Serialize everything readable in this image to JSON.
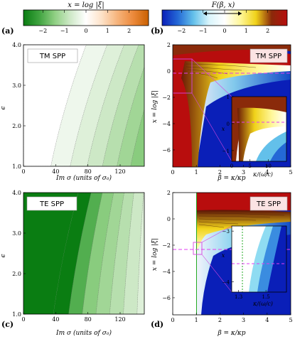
{
  "colorbars": {
    "left": {
      "title": "x = log |ξ|",
      "ticks": [
        "−2",
        "−1",
        "0",
        "1",
        "2"
      ],
      "range": [
        -2.9,
        2.9
      ],
      "colors": [
        "#0a7d12",
        "#3fa33f",
        "#8fcf83",
        "#cfe9c8",
        "#ffffff",
        "#fde2c8",
        "#f6b47c",
        "#ec8a3c",
        "#c96000"
      ]
    },
    "right": {
      "title": "F(β, x)",
      "ticks": [
        "−2",
        "−1",
        "0",
        "1",
        "2"
      ],
      "range": [
        -2.9,
        2.9
      ],
      "colors": [
        "#0a1fb8",
        "#2468d6",
        "#63c0ea",
        "#d9f5fb",
        "#ffffff",
        "#fff79a",
        "#f0d21a",
        "#8a2a0a",
        "#b80d0d"
      ]
    }
  },
  "chart_data": [
    {
      "panel": "(a)",
      "type": "heatmap",
      "label": "TM SPP",
      "xlabel": "Im σ  (units of σ₀)",
      "ylabel": "ϵ",
      "xticks": [
        "0",
        "40",
        "80",
        "120"
      ],
      "yticks": [
        "1.0",
        "2.0",
        "3.0",
        "4.0"
      ],
      "xlim": [
        0,
        150
      ],
      "ylim": [
        1.0,
        4.0
      ],
      "contour_levels": [
        0,
        -0.25,
        -0.5,
        -0.75,
        -1.0,
        -1.25,
        -1.5,
        -1.75
      ],
      "level_boundaries_x_at_eps1": [
        0,
        34,
        58,
        79,
        98,
        116,
        133,
        150
      ],
      "level_boundaries_x_at_eps4": [
        0,
        78,
        104,
        125,
        143,
        160,
        176,
        190
      ]
    },
    {
      "panel": "(b)",
      "type": "heatmap",
      "label": "TM SPP",
      "xlabel": "β = κ/κp",
      "ylabel": "x = log |ξ|",
      "xticks": [
        "0",
        "1",
        "2",
        "3",
        "4",
        "5"
      ],
      "yticks": [
        "2",
        "0",
        "−2",
        "−4",
        "−6"
      ],
      "xlim": [
        0,
        5
      ],
      "ylim": [
        -7.3,
        2.0
      ],
      "dashed_line_x": -0.1,
      "inset": {
        "xlabel": "κ/(ω/c)",
        "ylabel": "x",
        "xticks": [
          "0",
          "5",
          "10"
        ],
        "yticks": [
          "1",
          "0",
          "−1"
        ],
        "xlim": [
          0,
          15
        ],
        "ylim": [
          -1.4,
          1.0
        ]
      }
    },
    {
      "panel": "(c)",
      "type": "heatmap",
      "label": "TE SPP",
      "xlabel": "Im σ  (units of σ₀)",
      "ylabel": "ϵ",
      "xticks": [
        "0",
        "40",
        "80",
        "120"
      ],
      "yticks": [
        "1.0",
        "2.0",
        "3.0",
        "4.0"
      ],
      "xlim": [
        0,
        150
      ],
      "ylim": [
        1.0,
        4.0
      ],
      "contour_levels": [
        -2.9,
        -2.0,
        -1.5,
        -1.25,
        -1.0,
        -0.75,
        -0.5,
        -0.25
      ],
      "level_boundaries_x_at_eps1": [
        37,
        56,
        73,
        90,
        107,
        124,
        141,
        158
      ],
      "level_boundaries_x_at_eps4": [
        68,
        84,
        98,
        112,
        125,
        137,
        149,
        161
      ]
    },
    {
      "panel": "(d)",
      "type": "heatmap",
      "label": "TE SPP",
      "xlabel": "β = κ/κp",
      "ylabel": "x = log |ξ|",
      "xticks": [
        "0",
        "1",
        "2",
        "3",
        "4",
        "5"
      ],
      "yticks": [
        "2",
        "0",
        "−2",
        "−4",
        "−6"
      ],
      "xlim": [
        0,
        5
      ],
      "ylim": [
        -7.3,
        2.0
      ],
      "dashed_line_x": -3.6,
      "inset": {
        "xlabel": "κ/(ω/c)",
        "ylabel": "x",
        "xticks": [
          "1.3",
          "1.5"
        ],
        "yticks": [
          "−3",
          "−4"
        ],
        "xlim": [
          1.25,
          1.65
        ],
        "ylim": [
          -4.2,
          -2.9
        ]
      }
    }
  ]
}
